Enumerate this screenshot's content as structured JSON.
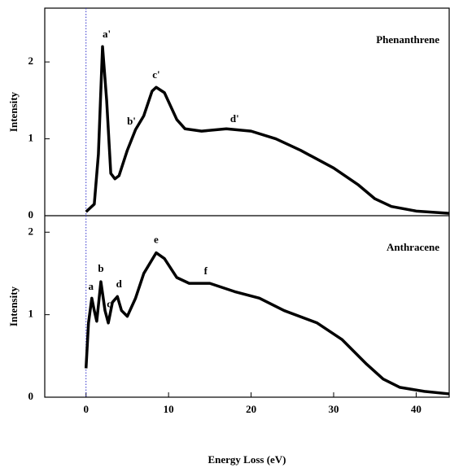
{
  "chart_data": [
    {
      "type": "line",
      "panel_label": "Phenanthrene",
      "ylabel": "Intensity",
      "x": [
        0,
        1,
        1.5,
        2,
        2.5,
        3,
        3.5,
        4,
        5,
        6,
        7,
        8,
        8.5,
        9.5,
        11,
        12,
        14,
        17,
        20,
        23,
        26,
        30,
        33,
        35,
        37,
        40,
        44
      ],
      "series": [
        {
          "name": "Phenanthrene",
          "color": "#000000",
          "values": [
            0.05,
            0.15,
            0.8,
            2.2,
            1.5,
            0.55,
            0.48,
            0.52,
            0.85,
            1.12,
            1.3,
            1.62,
            1.67,
            1.6,
            1.25,
            1.13,
            1.1,
            1.13,
            1.1,
            1.0,
            0.85,
            0.62,
            0.4,
            0.22,
            0.12,
            0.06,
            0.03
          ]
        }
      ],
      "xlim": [
        -5,
        44
      ],
      "ylim": [
        0,
        2.7
      ],
      "yticks": [
        0,
        1,
        2
      ],
      "vline_x": 0,
      "vline_color": "#3333cc",
      "annotations": [
        {
          "text": "a'",
          "x": 2.5,
          "y": 2.35
        },
        {
          "text": "b'",
          "x": 5.5,
          "y": 1.22
        },
        {
          "text": "c'",
          "x": 8.5,
          "y": 1.82
        },
        {
          "text": "d'",
          "x": 18,
          "y": 1.25
        }
      ]
    },
    {
      "type": "line",
      "panel_label": "Anthracene",
      "ylabel": "Intensity",
      "xlabel": "Energy Loss (eV)",
      "x": [
        0,
        0.3,
        0.7,
        1,
        1.3,
        1.8,
        2.3,
        2.7,
        3.2,
        3.8,
        4.3,
        5,
        6,
        7,
        8.5,
        9.5,
        11,
        12.5,
        15,
        18,
        21,
        24,
        28,
        31,
        34,
        36,
        38,
        41,
        44
      ],
      "series": [
        {
          "name": "Anthracene",
          "color": "#000000",
          "values": [
            0.35,
            0.9,
            1.2,
            1.05,
            0.92,
            1.4,
            1.05,
            0.9,
            1.15,
            1.22,
            1.05,
            0.98,
            1.2,
            1.5,
            1.75,
            1.68,
            1.45,
            1.38,
            1.38,
            1.28,
            1.2,
            1.05,
            0.9,
            0.7,
            0.4,
            0.22,
            0.12,
            0.07,
            0.04
          ]
        }
      ],
      "xlim": [
        -5,
        44
      ],
      "xticks": [
        0,
        10,
        20,
        30,
        40
      ],
      "ylim": [
        0,
        2.2
      ],
      "yticks": [
        0,
        1,
        2
      ],
      "vline_x": 0,
      "vline_color": "#3333cc",
      "annotations": [
        {
          "text": "a",
          "x": 0.6,
          "y": 1.33
        },
        {
          "text": "b",
          "x": 1.8,
          "y": 1.55
        },
        {
          "text": "c",
          "x": 2.8,
          "y": 1.12
        },
        {
          "text": "d",
          "x": 4,
          "y": 1.36
        },
        {
          "text": "e",
          "x": 8.5,
          "y": 1.9
        },
        {
          "text": "f",
          "x": 14.5,
          "y": 1.52
        }
      ]
    }
  ]
}
